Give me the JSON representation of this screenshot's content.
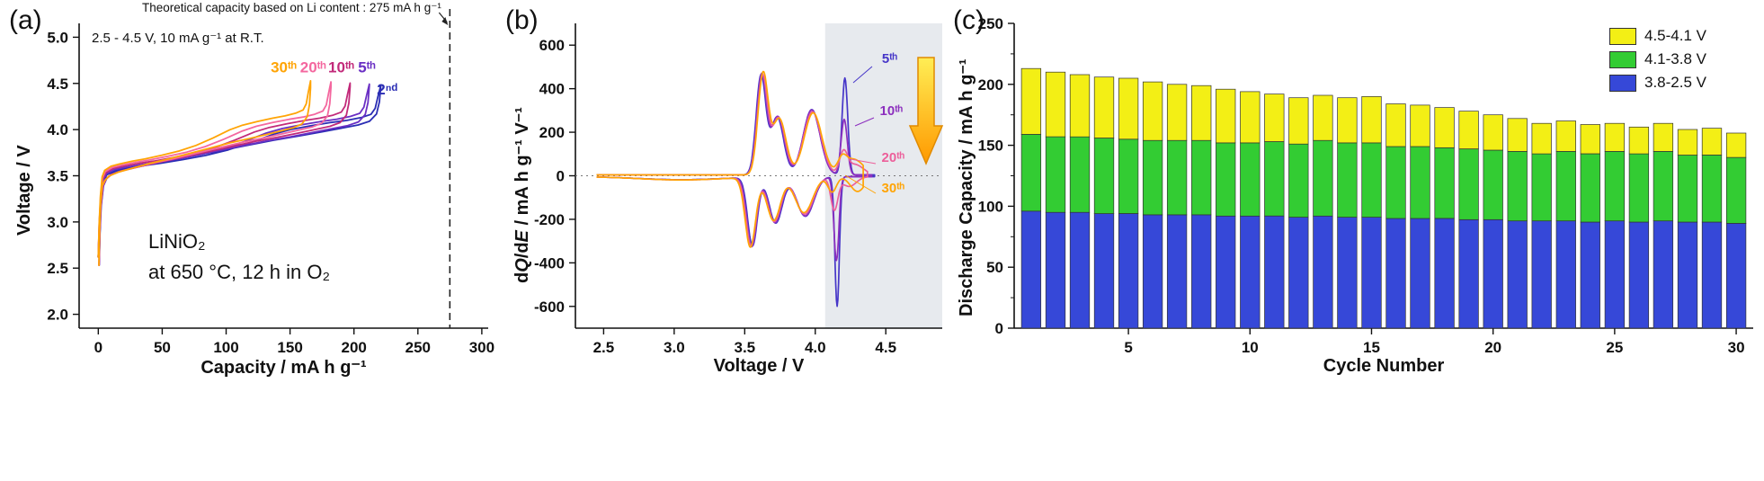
{
  "panels": {
    "a": "(a)",
    "b": "(b)",
    "c": "(c)"
  },
  "chart_data": [
    {
      "type": "line",
      "panel": "a",
      "xlabel": "Capacity / mA h g⁻¹",
      "ylabel": "Voltage / V",
      "xlim": [
        -15,
        305
      ],
      "ylim": [
        1.85,
        5.15
      ],
      "xticks": [
        "0",
        "50",
        "100",
        "150",
        "200",
        "250",
        "300"
      ],
      "yticks": [
        "2.0",
        "2.5",
        "3.0",
        "3.5",
        "4.0",
        "4.5",
        "5.0"
      ],
      "grid": false,
      "annotations": {
        "theoretical": "Theoretical capacity based on Li content : 275 mA h g⁻¹",
        "conditions": "2.5 - 4.5 V, 10 mA g⁻¹ at R.T.",
        "sample_line1": "LiNiO₂",
        "sample_line2": "at 650 °C, 12 h in O₂"
      },
      "theoretical_capacity_x": 275,
      "series": [
        {
          "name": "2ⁿᵈ",
          "color": "#2a2db4",
          "q_max": 221,
          "v_offset": 0,
          "label_pos": [
            226,
            4.38
          ]
        },
        {
          "name": "5ᵗʰ",
          "color": "#6a2fc4",
          "q_max": 212,
          "v_offset": 0.012,
          "label_pos": [
            210,
            4.62
          ]
        },
        {
          "name": "10ᵗʰ",
          "color": "#c22a7a",
          "q_max": 197,
          "v_offset": 0.024,
          "label_pos": [
            190,
            4.62
          ]
        },
        {
          "name": "20ᵗʰ",
          "color": "#f4679f",
          "q_max": 182,
          "v_offset": 0.036,
          "label_pos": [
            168,
            4.62
          ]
        },
        {
          "name": "30ᵗʰ",
          "color": "#ffa405",
          "q_max": 166,
          "v_offset": 0.048,
          "label_pos": [
            145,
            4.62
          ]
        }
      ],
      "charge_profile": [
        [
          0,
          2.62
        ],
        [
          0.004,
          2.98
        ],
        [
          0.01,
          3.28
        ],
        [
          0.018,
          3.44
        ],
        [
          0.03,
          3.51
        ],
        [
          0.06,
          3.555
        ],
        [
          0.1,
          3.58
        ],
        [
          0.16,
          3.61
        ],
        [
          0.22,
          3.635
        ],
        [
          0.3,
          3.675
        ],
        [
          0.38,
          3.72
        ],
        [
          0.46,
          3.78
        ],
        [
          0.54,
          3.86
        ],
        [
          0.62,
          3.95
        ],
        [
          0.68,
          4.0
        ],
        [
          0.75,
          4.04
        ],
        [
          0.82,
          4.075
        ],
        [
          0.88,
          4.1
        ],
        [
          0.93,
          4.13
        ],
        [
          0.965,
          4.165
        ],
        [
          0.98,
          4.23
        ],
        [
          0.99,
          4.36
        ],
        [
          1,
          4.48
        ]
      ],
      "discharge_profile": [
        [
          1,
          4.48
        ],
        [
          0.995,
          4.3
        ],
        [
          0.985,
          4.17
        ],
        [
          0.96,
          4.09
        ],
        [
          0.92,
          4.05
        ],
        [
          0.86,
          4.015
        ],
        [
          0.79,
          3.975
        ],
        [
          0.71,
          3.93
        ],
        [
          0.62,
          3.885
        ],
        [
          0.52,
          3.825
        ],
        [
          0.42,
          3.765
        ],
        [
          0.32,
          3.705
        ],
        [
          0.23,
          3.655
        ],
        [
          0.15,
          3.605
        ],
        [
          0.09,
          3.565
        ],
        [
          0.05,
          3.525
        ],
        [
          0.03,
          3.475
        ],
        [
          0.018,
          3.39
        ],
        [
          0.01,
          3.17
        ],
        [
          0.006,
          2.88
        ],
        [
          0.003,
          2.53
        ]
      ]
    },
    {
      "type": "line",
      "panel": "b",
      "xlabel": "Voltage / V",
      "ylabel": "dQ/dE / mA h g⁻¹ V⁻¹",
      "ylabel_parts": [
        "d",
        "Q",
        "/d",
        "E",
        " / mA h g⁻¹ V⁻¹"
      ],
      "xlim": [
        2.3,
        4.9
      ],
      "ylim": [
        -700,
        700
      ],
      "xticks": [
        "2.5",
        "3.0",
        "3.5",
        "4.0",
        "4.5"
      ],
      "yticks": [
        "-600",
        "-400",
        "-200",
        "0",
        "200",
        "400",
        "600"
      ],
      "shade_from_x": 4.07,
      "zero_line": true,
      "series": [
        {
          "name": "5ᵗʰ",
          "color": "#4636c8",
          "v_end": 4.42,
          "pos_peaks": [
            [
              3.615,
              450,
              0.034
            ],
            [
              3.73,
              265,
              0.046
            ],
            [
              3.975,
              300,
              0.06
            ],
            [
              4.21,
              445,
              0.02
            ]
          ],
          "neg_peaks": [
            [
              3.05,
              -14,
              0.3
            ],
            [
              3.555,
              -315,
              0.034
            ],
            [
              3.72,
              -212,
              0.046
            ],
            [
              3.93,
              -182,
              0.06
            ],
            [
              4.155,
              -595,
              0.016
            ]
          ]
        },
        {
          "name": "10ᵗʰ",
          "color": "#8c2fbe",
          "v_end": 4.4,
          "pos_peaks": [
            [
              3.62,
              455,
              0.034
            ],
            [
              3.735,
              268,
              0.046
            ],
            [
              3.975,
              298,
              0.06
            ],
            [
              4.205,
              255,
              0.022
            ]
          ],
          "neg_peaks": [
            [
              3.05,
              -14,
              0.3
            ],
            [
              3.55,
              -318,
              0.035
            ],
            [
              3.715,
              -210,
              0.046
            ],
            [
              3.928,
              -180,
              0.06
            ],
            [
              4.15,
              -385,
              0.018
            ]
          ]
        },
        {
          "name": "20ᵗʰ",
          "color": "#ec5f9a",
          "v_end": 4.37,
          "pos_peaks": [
            [
              3.625,
              448,
              0.035
            ],
            [
              3.74,
              262,
              0.047
            ],
            [
              3.98,
              290,
              0.062
            ],
            [
              4.2,
              95,
              0.028
            ],
            [
              4.28,
              48,
              0.06
            ]
          ],
          "neg_peaks": [
            [
              3.05,
              -15,
              0.3
            ],
            [
              3.545,
              -312,
              0.036
            ],
            [
              3.71,
              -205,
              0.047
            ],
            [
              3.925,
              -172,
              0.061
            ],
            [
              4.135,
              -150,
              0.025
            ],
            [
              4.24,
              -45,
              0.05
            ]
          ]
        },
        {
          "name": "30ᵗʰ",
          "color": "#ffa405",
          "v_end": 4.34,
          "pos_peaks": [
            [
              3.63,
              460,
              0.036
            ],
            [
              3.745,
              258,
              0.048
            ],
            [
              3.985,
              285,
              0.063
            ],
            [
              4.19,
              55,
              0.03
            ],
            [
              4.27,
              72,
              0.07
            ]
          ],
          "neg_peaks": [
            [
              3.05,
              -15,
              0.3
            ],
            [
              3.54,
              -320,
              0.037
            ],
            [
              3.705,
              -200,
              0.048
            ],
            [
              3.92,
              -165,
              0.062
            ],
            [
              4.12,
              -70,
              0.03
            ],
            [
              4.3,
              -68,
              0.05
            ]
          ]
        }
      ]
    },
    {
      "type": "bar",
      "panel": "c",
      "xlabel": "Cycle Number",
      "ylabel": "Discharge Capacity / mA h g⁻¹",
      "xlim": [
        0.3,
        30.7
      ],
      "ylim": [
        0,
        250
      ],
      "xticks": [
        "5",
        "10",
        "15",
        "20",
        "25",
        "30"
      ],
      "yticks": [
        "0",
        "50",
        "100",
        "150",
        "200",
        "250"
      ],
      "categories": [
        1,
        2,
        3,
        4,
        5,
        6,
        7,
        8,
        9,
        10,
        11,
        12,
        13,
        14,
        15,
        16,
        17,
        18,
        19,
        20,
        21,
        22,
        23,
        24,
        25,
        26,
        27,
        28,
        29,
        30
      ],
      "series": [
        {
          "name": "3.8-2.5 V",
          "color": "#3648d8",
          "values": [
            96,
            95,
            95,
            94,
            94,
            93,
            93,
            93,
            92,
            92,
            92,
            91,
            92,
            91,
            91,
            90,
            90,
            90,
            89,
            89,
            88,
            88,
            88,
            87,
            88,
            87,
            88,
            87,
            87,
            86
          ]
        },
        {
          "name": "4.1-3.8 V",
          "color": "#33cc33",
          "values": [
            63,
            62,
            62,
            62,
            61,
            61,
            61,
            61,
            60,
            60,
            61,
            60,
            62,
            61,
            61,
            59,
            59,
            58,
            58,
            57,
            57,
            55,
            57,
            56,
            57,
            56,
            57,
            55,
            55,
            54
          ]
        },
        {
          "name": "4.5-4.1 V",
          "color": "#f3ef15",
          "values": [
            54,
            53,
            51,
            50,
            50,
            48,
            46,
            45,
            44,
            42,
            39,
            38,
            37,
            37,
            38,
            35,
            34,
            33,
            31,
            29,
            27,
            25,
            25,
            24,
            23,
            22,
            23,
            21,
            22,
            20
          ]
        }
      ],
      "legend": [
        {
          "label": "4.5-4.1 V",
          "color": "#f3ef15"
        },
        {
          "label": "4.1-3.8 V",
          "color": "#33cc33"
        },
        {
          "label": "3.8-2.5 V",
          "color": "#3648d8"
        }
      ]
    }
  ]
}
